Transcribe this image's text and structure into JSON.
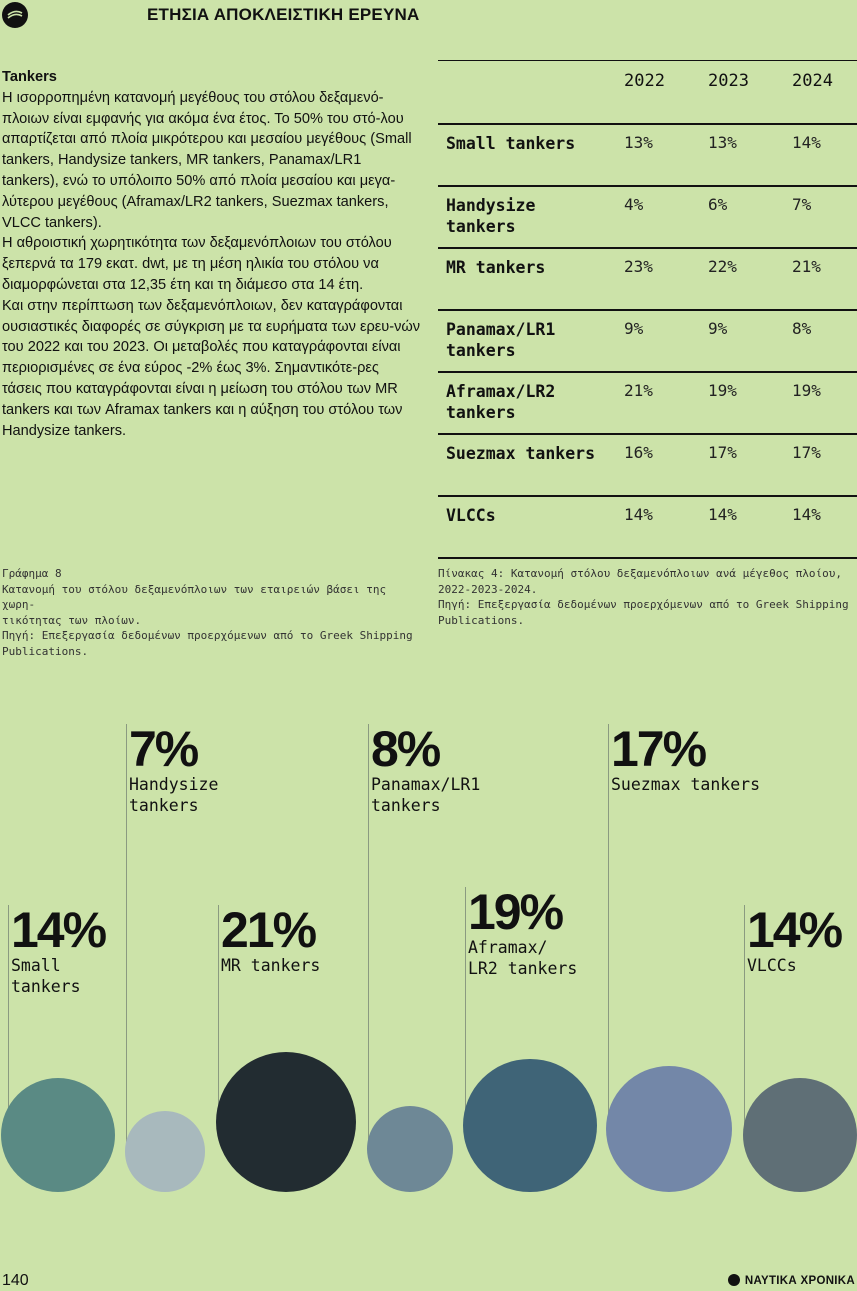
{
  "header": {
    "title": "ΕΤΗΣΙΑ ΑΠΟΚΛΕΙΣΤΙΚΗ ΕΡΕΥΝΑ"
  },
  "article": {
    "heading": "Tankers",
    "p1": "Η ισορροπημένη κατανομή μεγέθους του στόλου δεξαμενό-πλοιων είναι εμφανής για ακόμα ένα έτος. Το 50% του στό-λου απαρτίζεται από πλοία μικρότερου και μεσαίου μεγέθους (Small tankers, Handysize tankers, MR tankers, Panamax/LR1 tankers), ενώ το υπόλοιπο 50% από πλοία μεσαίου και μεγα-λύτερου μεγέθους (Aframax/LR2 tankers, Suezmax tankers, VLCC tankers).",
    "p2": "Η αθροιστική χωρητικότητα των δεξαμενόπλοιων του στόλου ξεπερνά τα 179 εκατ. dwt, με τη μέση ηλικία του στόλου να διαμορφώνεται στα 12,35 έτη και τη διάμεσο στα 14 έτη.",
    "p3": "Και στην περίπτωση των δεξαμενόπλοιων, δεν καταγράφονται ουσιαστικές διαφορές σε σύγκριση με τα ευρήματα των ερευ-νών του 2022 και του 2023. Οι μεταβολές που καταγράφονται είναι περιορισμένες σε ένα εύρος -2% έως 3%. Σημαντικότε-ρες τάσεις που καταγράφονται είναι η μείωση του στόλου των MR tankers και των Aframax tankers και η αύξηση του στόλου των Handysize tankers."
  },
  "table": {
    "years": [
      "2022",
      "2023",
      "2024"
    ],
    "rows": [
      {
        "label": "Small tankers",
        "values": [
          "13%",
          "13%",
          "14%"
        ]
      },
      {
        "label": "Handysize tankers",
        "values": [
          "4%",
          "6%",
          "7%"
        ]
      },
      {
        "label": "MR tankers",
        "values": [
          "23%",
          "22%",
          "21%"
        ]
      },
      {
        "label": "Panamax/LR1 tankers",
        "values": [
          "9%",
          "9%",
          "8%"
        ]
      },
      {
        "label": "Aframax/LR2 tankers",
        "values": [
          "21%",
          "19%",
          "19%"
        ]
      },
      {
        "label": "Suezmax tankers",
        "values": [
          "16%",
          "17%",
          "17%"
        ]
      },
      {
        "label": "VLCCs",
        "values": [
          "14%",
          "14%",
          "14%"
        ]
      }
    ]
  },
  "caption_left": {
    "line1": "Γράφημα 8",
    "line2": "Κατανομή του στόλου δεξαμενόπλοιων των εταιρειών βάσει της χωρη-\nτικότητας των πλοίων.",
    "line3": "Πηγή: Επεξεργασία δεδομένων προερχόμενων από το Greek Shipping\nPublications."
  },
  "caption_right": {
    "line1": "Πίνακας 4: Κατανομή στόλου δεξαμενόπλοιων ανά μέγεθος πλοίου,\n2022-2023-2024.",
    "line2": "Πηγή: Επεξεργασία δεδομένων προερχόμενων από το Greek Shipping\nPublications."
  },
  "chart_data": {
    "type": "bubble",
    "categories": [
      "Small tankers",
      "Handysize tankers",
      "MR tankers",
      "Panamax/LR1 tankers",
      "Aframax/LR2 tankers",
      "Suezmax tankers",
      "VLCCs"
    ],
    "values": [
      14,
      7,
      21,
      8,
      19,
      17,
      14
    ],
    "labels": [
      "14%",
      "7%",
      "21%",
      "8%",
      "19%",
      "17%",
      "14%"
    ],
    "display_labels": [
      "Small\ntankers",
      "Handysize\ntankers",
      "MR tankers",
      "Panamax/LR1\ntankers",
      "Aframax/\nLR2 tankers",
      "Suezmax tankers",
      "VLCCs"
    ],
    "colors": [
      "#5a8a84",
      "#a8b9bd",
      "#222c31",
      "#6e8896",
      "#3f6477",
      "#7387a8",
      "#5f6f76"
    ],
    "unit": "%"
  },
  "footer": {
    "page_number": "140",
    "brand": "ΝΑΥΤΙΚΑ ΧΡΟΝΙΚΑ"
  }
}
